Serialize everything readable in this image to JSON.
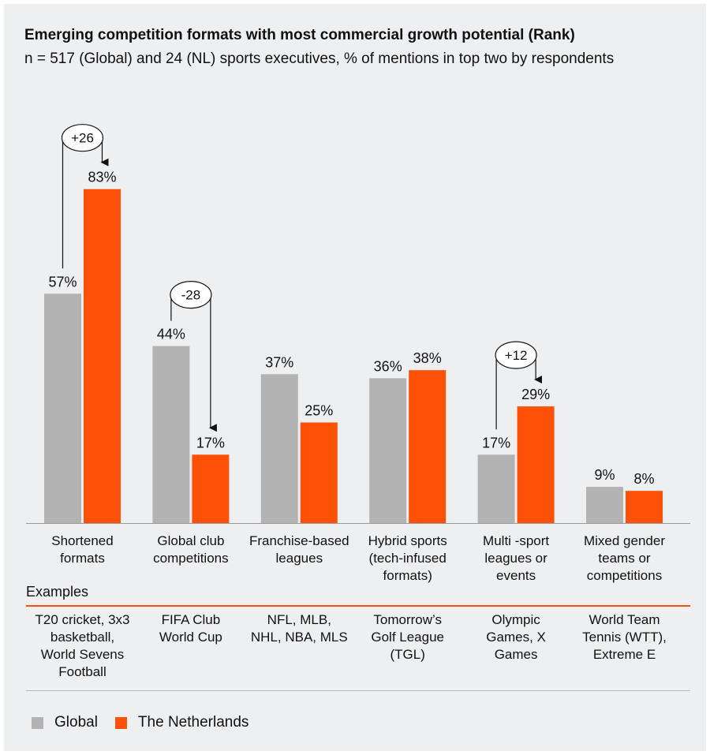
{
  "title": "Emerging competition formats with most commercial growth potential (Rank)",
  "subtitle": "n = 517 (Global) and 24 (NL) sports executives, % of mentions in top two by respondents",
  "examples_heading": "Examples",
  "colors": {
    "global": "#b3b3b3",
    "nl": "#fe5108",
    "panel": "#eeeff1"
  },
  "chart_data": {
    "type": "bar",
    "title": "Emerging competition formats with most commercial growth potential (Rank)",
    "categories": [
      "Shortened formats",
      "Global club competitions",
      "Franchise-based leagues",
      "Hybrid sports (tech-infused formats)",
      "Multi -sport leagues or events",
      "Mixed gender teams or competitions"
    ],
    "series": [
      {
        "name": "Global",
        "values": [
          57,
          44,
          37,
          36,
          17,
          9
        ]
      },
      {
        "name": "The Netherlands",
        "values": [
          83,
          17,
          25,
          38,
          29,
          8
        ]
      }
    ],
    "value_labels": {
      "Global": [
        "57%",
        "44%",
        "37%",
        "36%",
        "17%",
        "9%"
      ],
      "The Netherlands": [
        "83%",
        "17%",
        "25%",
        "38%",
        "29%",
        "8%"
      ]
    },
    "annotations": [
      {
        "category_index": 0,
        "label": "+26"
      },
      {
        "category_index": 1,
        "label": "-28"
      },
      {
        "category_index": 4,
        "label": "+12"
      }
    ],
    "ylim": [
      0,
      100
    ],
    "grid": false,
    "legend_position": "bottom-left"
  },
  "category_lines": [
    [
      "Shortened",
      "formats"
    ],
    [
      "Global club",
      "competitions"
    ],
    [
      "Franchise-based",
      "leagues"
    ],
    [
      "Hybrid sports",
      "(tech-infused",
      "formats)"
    ],
    [
      "Multi -sport",
      "leagues or",
      "events"
    ],
    [
      "Mixed gender",
      "teams or",
      "competitions"
    ]
  ],
  "examples": [
    [
      "T20 cricket, 3x3",
      "basketball,",
      "World Sevens",
      "Football"
    ],
    [
      "FIFA Club",
      "World Cup"
    ],
    [
      "NFL, MLB,",
      "NHL, NBA, MLS"
    ],
    [
      "Tomorrow’s",
      "Golf League",
      "(TGL)"
    ],
    [
      "Olympic",
      "Games, X",
      "Games"
    ],
    [
      "World Team",
      "Tennis (WTT),",
      "Extreme E"
    ]
  ],
  "legend": [
    {
      "label": "Global",
      "color": "#b3b3b3"
    },
    {
      "label": "The Netherlands",
      "color": "#fe5108"
    }
  ]
}
